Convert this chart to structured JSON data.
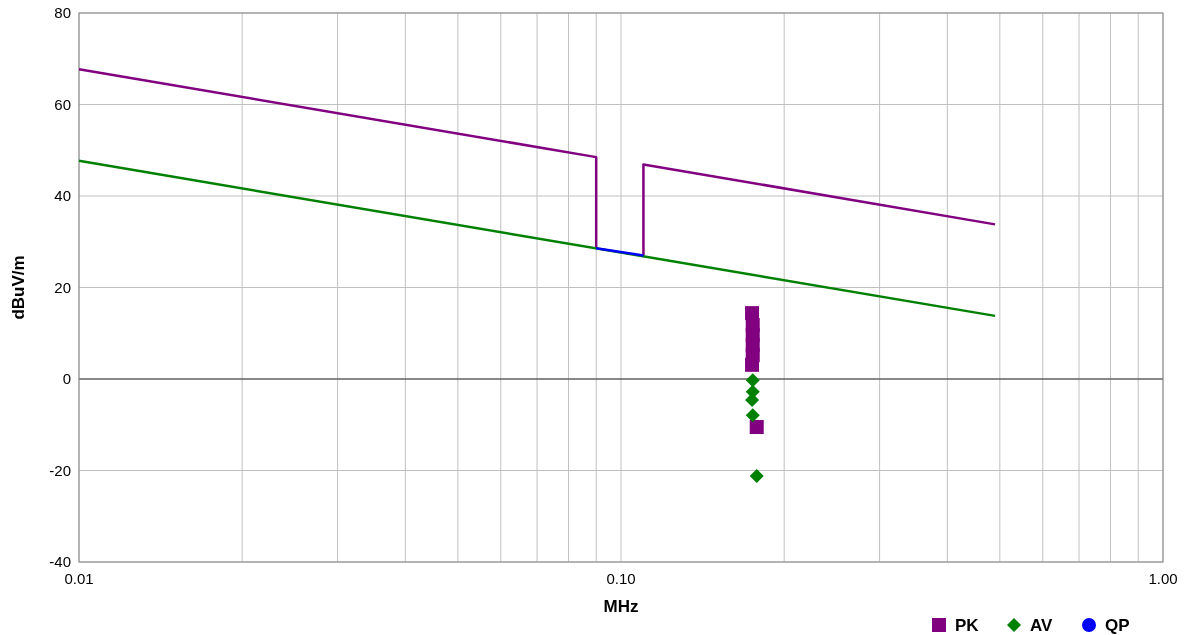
{
  "chart_data": {
    "type": "scatter",
    "xlabel": "MHz",
    "ylabel": "dBuV/m",
    "log": "x",
    "grid": true,
    "legend": "bottom right",
    "xlim": [
      0.01,
      1
    ],
    "ylim": [
      -40,
      80
    ],
    "xticks": [
      {
        "value": 0.01,
        "label": "0.01"
      },
      {
        "value": 0.02,
        "label": null
      },
      {
        "value": 0.03,
        "label": null
      },
      {
        "value": 0.04,
        "label": null
      },
      {
        "value": 0.05,
        "label": null
      },
      {
        "value": 0.06,
        "label": null
      },
      {
        "value": 0.07,
        "label": null
      },
      {
        "value": 0.08,
        "label": null
      },
      {
        "value": 0.09,
        "label": null
      },
      {
        "value": 0.1,
        "label": "0.10"
      },
      {
        "value": 0.2,
        "label": null
      },
      {
        "value": 0.3,
        "label": null
      },
      {
        "value": 0.4,
        "label": null
      },
      {
        "value": 0.5,
        "label": null
      },
      {
        "value": 0.6,
        "label": null
      },
      {
        "value": 0.7,
        "label": null
      },
      {
        "value": 0.8,
        "label": null
      },
      {
        "value": 0.9,
        "label": null
      },
      {
        "value": 1,
        "label": "1.00"
      }
    ],
    "yticks": [
      -40,
      -20,
      0,
      20,
      40,
      60,
      80
    ],
    "ref_lines": [
      {
        "axis": "y",
        "value": 0,
        "color": "#333333"
      }
    ],
    "series": [
      {
        "type": "line",
        "color": "#800080",
        "x": [
          0.01,
          0.09,
          0.09,
          0.1,
          0.11,
          0.11,
          0.49
        ],
        "values": [
          67.7,
          48.5,
          28.6,
          null,
          27.0,
          46.9,
          33.8
        ]
      },
      {
        "type": "line",
        "color": "#008000",
        "x": [
          0.01,
          0.49
        ],
        "values": [
          47.7,
          13.8
        ]
      },
      {
        "name": "PK",
        "color": "#800080",
        "marker": "square",
        "x": [
          0.1745,
          0.175,
          0.175,
          0.175,
          0.175,
          0.1745,
          0.178
        ],
        "values": [
          14.4,
          11.8,
          9.6,
          7.4,
          5.2,
          3.1,
          -10.5
        ]
      },
      {
        "name": "AV",
        "color": "#008000",
        "marker": "diamond",
        "x": [
          0.175,
          0.175,
          0.1745,
          0.175,
          0.178
        ],
        "values": [
          -0.3,
          -2.8,
          -4.6,
          -7.9,
          -21.2
        ]
      },
      {
        "type": "line",
        "name": "QP",
        "color": "#0000ff",
        "x": [
          0.09,
          0.11
        ],
        "values": [
          28.6,
          27.0
        ]
      }
    ]
  }
}
